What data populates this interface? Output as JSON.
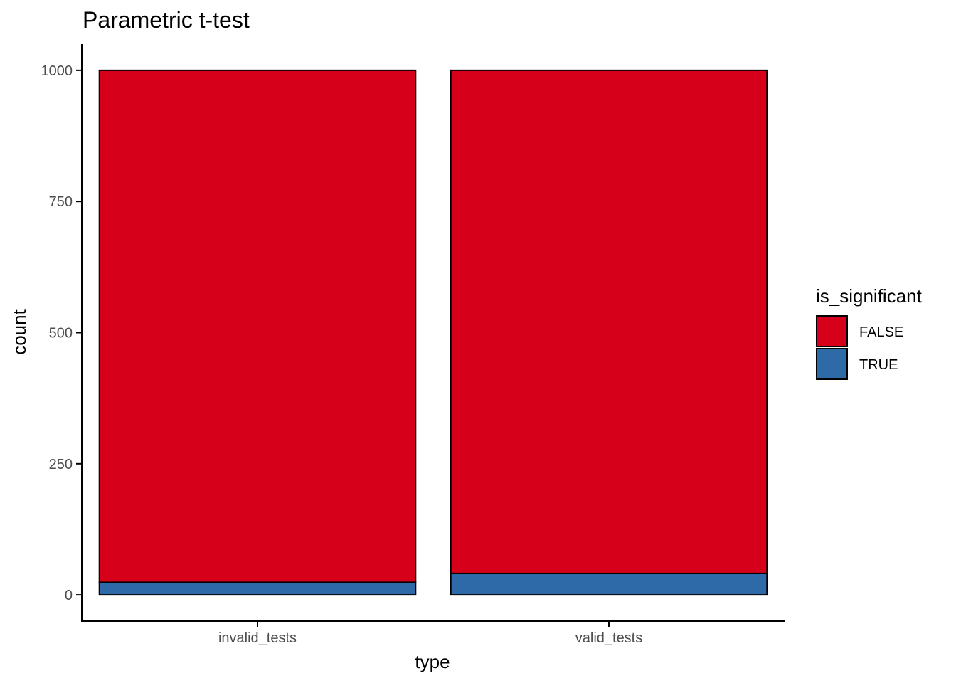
{
  "chart_data": {
    "type": "bar",
    "stacked": true,
    "title": "Parametric t-test",
    "xlabel": "type",
    "ylabel": "count",
    "categories": [
      "invalid_tests",
      "valid_tests"
    ],
    "series": [
      {
        "name": "FALSE",
        "color": "#D7001A",
        "values": [
          976,
          959
        ]
      },
      {
        "name": "TRUE",
        "color": "#2E6AA8",
        "values": [
          24,
          41
        ]
      }
    ],
    "ylim": [
      -50,
      1050
    ],
    "yticks": [
      0,
      250,
      500,
      750,
      1000
    ],
    "grid": false,
    "legend": {
      "title": "is_significant",
      "placement": "right",
      "entries": [
        "FALSE",
        "TRUE"
      ]
    }
  }
}
